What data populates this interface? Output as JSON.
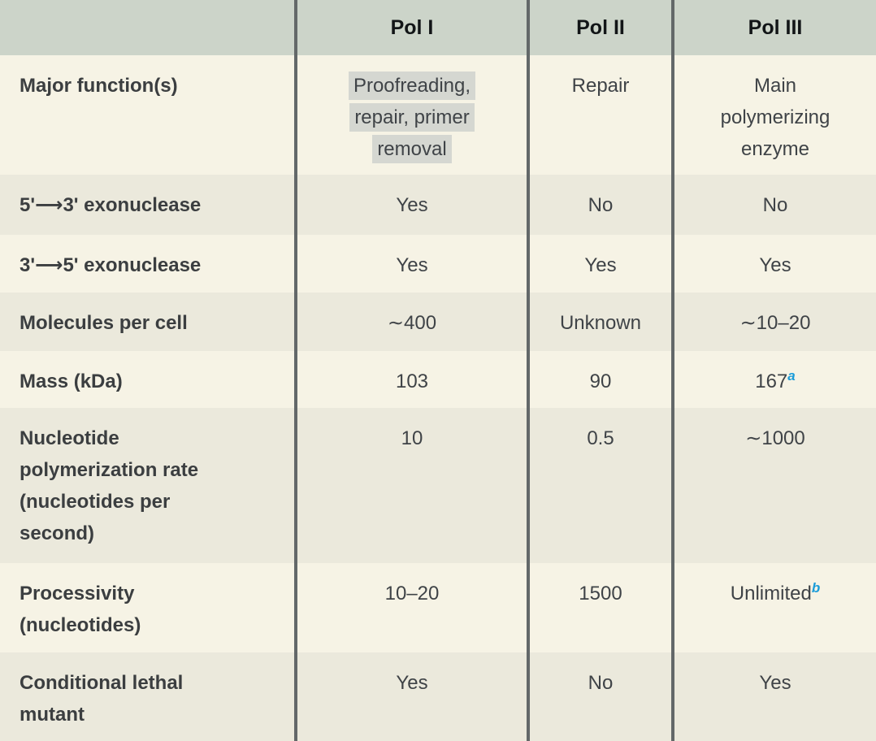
{
  "colors": {
    "header_bg": "#ccd4c9",
    "row_light": "#f6f3e5",
    "row_dark": "#ebe9dc",
    "divider": "#636869",
    "header_text": "#121517",
    "label_text": "#3b3e40",
    "value_text": "#3f4347",
    "selection_highlight_bg": "#d5d7d1",
    "footnote_blue": "#1b9cd9"
  },
  "table": {
    "header": {
      "col0": "",
      "col1": "Pol I",
      "col2": "Pol II",
      "col3": "Pol III"
    },
    "rows": [
      {
        "label": "Major function(s)",
        "values": [
          {
            "text": "Proofreading,\nrepair, primer\nremoval",
            "highlighted": true
          },
          "Repair",
          "Main\npolymerizing\nenzyme"
        ]
      },
      {
        "label": "5'⟶3' exonuclease",
        "values": [
          "Yes",
          "No",
          "No"
        ]
      },
      {
        "label": "3'⟶5' exonuclease",
        "values": [
          "Yes",
          "Yes",
          "Yes"
        ]
      },
      {
        "label": "Molecules per cell",
        "values": [
          "∼400",
          "Unknown",
          "∼10–20"
        ]
      },
      {
        "label": "Mass (kDa)",
        "values": [
          "103",
          "90",
          {
            "text": "167",
            "sup": "a"
          }
        ]
      },
      {
        "label": "Nucleotide\npolymerization rate\n(nucleotides per\nsecond)",
        "values": [
          "10",
          "0.5",
          "∼1000"
        ]
      },
      {
        "label": "Processivity\n(nucleotides)",
        "values": [
          "10–20",
          "1500",
          {
            "text": "Unlimited",
            "sup": "b"
          }
        ]
      },
      {
        "label": "Conditional lethal\nmutant",
        "values": [
          "Yes",
          "No",
          "Yes"
        ]
      }
    ]
  }
}
